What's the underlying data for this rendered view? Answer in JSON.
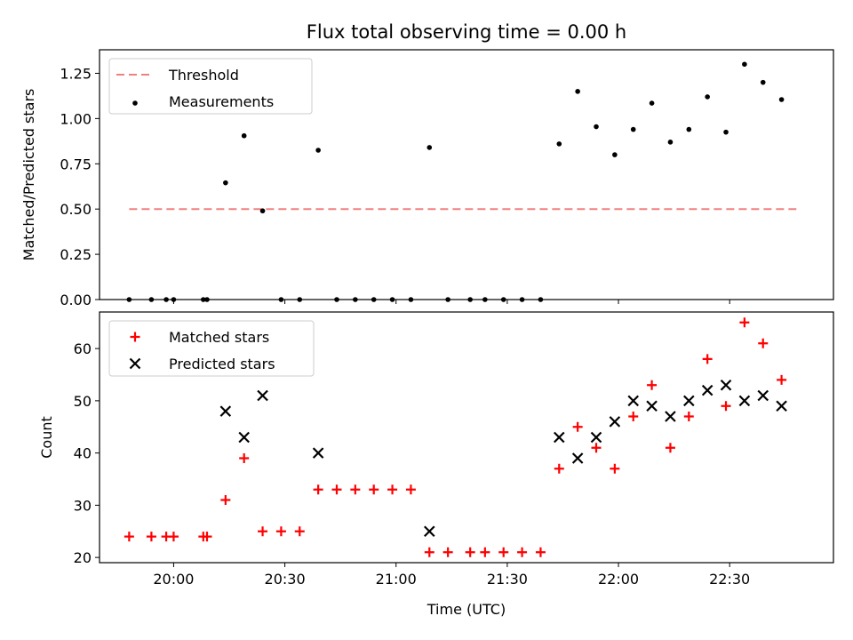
{
  "figure": {
    "title": "Flux total observing time = 0.00 h",
    "xlabel": "Time (UTC)",
    "x_tick_labels": [
      "20:00",
      "20:30",
      "21:00",
      "21:30",
      "22:00",
      "22:30"
    ]
  },
  "chart_data": [
    {
      "type": "scatter",
      "ylabel": "Matched/Predicted stars",
      "xlim": [
        "19:40",
        "22:58"
      ],
      "ylim": [
        0,
        1.38
      ],
      "x_ticks": [
        "20:00",
        "20:30",
        "21:00",
        "21:30",
        "22:00",
        "22:30"
      ],
      "y_ticks": [
        "0.00",
        "0.25",
        "0.50",
        "0.75",
        "1.00",
        "1.25"
      ],
      "legend_position": "top-left",
      "grid": false,
      "series": [
        {
          "name": "Threshold",
          "kind": "dashed-line",
          "color": "#f08080",
          "points": [
            {
              "x": "19:48",
              "y": 0.5
            },
            {
              "x": "22:48",
              "y": 0.5
            }
          ]
        },
        {
          "name": "Measurements",
          "kind": "dot",
          "color": "#000000",
          "points": [
            {
              "x": "19:48",
              "y": 0
            },
            {
              "x": "19:54",
              "y": 0
            },
            {
              "x": "19:58",
              "y": 0
            },
            {
              "x": "20:00",
              "y": 0
            },
            {
              "x": "20:08",
              "y": 0
            },
            {
              "x": "20:09",
              "y": 0
            },
            {
              "x": "20:14",
              "y": 0.645
            },
            {
              "x": "20:19",
              "y": 0.905
            },
            {
              "x": "20:24",
              "y": 0.49
            },
            {
              "x": "20:29",
              "y": 0
            },
            {
              "x": "20:34",
              "y": 0
            },
            {
              "x": "20:39",
              "y": 0.825
            },
            {
              "x": "20:44",
              "y": 0
            },
            {
              "x": "20:49",
              "y": 0
            },
            {
              "x": "20:54",
              "y": 0
            },
            {
              "x": "20:59",
              "y": 0
            },
            {
              "x": "21:04",
              "y": 0
            },
            {
              "x": "21:09",
              "y": 0.84
            },
            {
              "x": "21:14",
              "y": 0
            },
            {
              "x": "21:20",
              "y": 0
            },
            {
              "x": "21:24",
              "y": 0
            },
            {
              "x": "21:29",
              "y": 0
            },
            {
              "x": "21:34",
              "y": 0
            },
            {
              "x": "21:39",
              "y": 0
            },
            {
              "x": "21:44",
              "y": 0.86
            },
            {
              "x": "21:49",
              "y": 1.15
            },
            {
              "x": "21:54",
              "y": 0.955
            },
            {
              "x": "21:59",
              "y": 0.8
            },
            {
              "x": "22:04",
              "y": 0.94
            },
            {
              "x": "22:09",
              "y": 1.085
            },
            {
              "x": "22:14",
              "y": 0.87
            },
            {
              "x": "22:19",
              "y": 0.94
            },
            {
              "x": "22:24",
              "y": 1.12
            },
            {
              "x": "22:29",
              "y": 0.925
            },
            {
              "x": "22:34",
              "y": 1.3
            },
            {
              "x": "22:39",
              "y": 1.2
            },
            {
              "x": "22:44",
              "y": 1.105
            }
          ]
        }
      ]
    },
    {
      "type": "scatter",
      "ylabel": "Count",
      "xlabel": "Time (UTC)",
      "xlim": [
        "19:40",
        "22:58"
      ],
      "ylim": [
        19,
        67
      ],
      "x_ticks": [
        "20:00",
        "20:30",
        "21:00",
        "21:30",
        "22:00",
        "22:30"
      ],
      "y_ticks": [
        "20",
        "30",
        "40",
        "50",
        "60"
      ],
      "legend_position": "top-left",
      "grid": false,
      "series": [
        {
          "name": "Matched stars",
          "marker": "plus",
          "color": "#ff0000",
          "points": [
            {
              "x": "19:48",
              "y": 24
            },
            {
              "x": "19:54",
              "y": 24
            },
            {
              "x": "19:58",
              "y": 24
            },
            {
              "x": "20:00",
              "y": 24
            },
            {
              "x": "20:08",
              "y": 24
            },
            {
              "x": "20:09",
              "y": 24
            },
            {
              "x": "20:14",
              "y": 31
            },
            {
              "x": "20:19",
              "y": 39
            },
            {
              "x": "20:24",
              "y": 25
            },
            {
              "x": "20:29",
              "y": 25
            },
            {
              "x": "20:34",
              "y": 25
            },
            {
              "x": "20:39",
              "y": 33
            },
            {
              "x": "20:44",
              "y": 33
            },
            {
              "x": "20:49",
              "y": 33
            },
            {
              "x": "20:54",
              "y": 33
            },
            {
              "x": "20:59",
              "y": 33
            },
            {
              "x": "21:04",
              "y": 33
            },
            {
              "x": "21:09",
              "y": 21
            },
            {
              "x": "21:14",
              "y": 21
            },
            {
              "x": "21:20",
              "y": 21
            },
            {
              "x": "21:24",
              "y": 21
            },
            {
              "x": "21:29",
              "y": 21
            },
            {
              "x": "21:34",
              "y": 21
            },
            {
              "x": "21:39",
              "y": 21
            },
            {
              "x": "21:44",
              "y": 37
            },
            {
              "x": "21:49",
              "y": 45
            },
            {
              "x": "21:54",
              "y": 41
            },
            {
              "x": "21:59",
              "y": 37
            },
            {
              "x": "22:04",
              "y": 47
            },
            {
              "x": "22:09",
              "y": 53
            },
            {
              "x": "22:14",
              "y": 41
            },
            {
              "x": "22:19",
              "y": 47
            },
            {
              "x": "22:24",
              "y": 58
            },
            {
              "x": "22:29",
              "y": 49
            },
            {
              "x": "22:34",
              "y": 65
            },
            {
              "x": "22:39",
              "y": 61
            },
            {
              "x": "22:44",
              "y": 54
            }
          ]
        },
        {
          "name": "Predicted stars",
          "marker": "x",
          "color": "#000000",
          "points": [
            {
              "x": "20:14",
              "y": 48
            },
            {
              "x": "20:19",
              "y": 43
            },
            {
              "x": "20:24",
              "y": 51
            },
            {
              "x": "20:39",
              "y": 40
            },
            {
              "x": "21:09",
              "y": 25
            },
            {
              "x": "21:44",
              "y": 43
            },
            {
              "x": "21:49",
              "y": 39
            },
            {
              "x": "21:54",
              "y": 43
            },
            {
              "x": "21:59",
              "y": 46
            },
            {
              "x": "22:04",
              "y": 50
            },
            {
              "x": "22:09",
              "y": 49
            },
            {
              "x": "22:14",
              "y": 47
            },
            {
              "x": "22:19",
              "y": 50
            },
            {
              "x": "22:24",
              "y": 52
            },
            {
              "x": "22:29",
              "y": 53
            },
            {
              "x": "22:34",
              "y": 50
            },
            {
              "x": "22:39",
              "y": 51
            },
            {
              "x": "22:44",
              "y": 49
            }
          ]
        }
      ]
    }
  ]
}
